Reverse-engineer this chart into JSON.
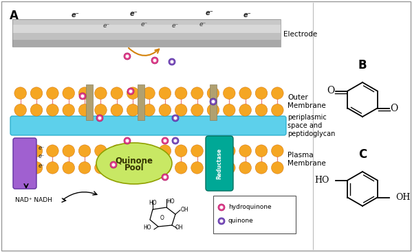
{
  "title_A": "A",
  "title_B": "B",
  "title_C": "C",
  "electrode_color": "#aaaaaa",
  "membrane_orange": "#f5a623",
  "membrane_pink": "#e87878",
  "periplasm_color": "#40c8e8",
  "quinone_pool_color": "#c8e864",
  "reductase_color": "#00a896",
  "protein_color": "#a060d0",
  "hydroquinone_color": "#e0408c",
  "quinone_color": "#8050b8",
  "arrow_color": "#d4820a",
  "pillar_color": "#aaa080",
  "label_outer": "Outer\nMembrane",
  "label_periplasm": "periplasmic\nspace and\npeptidoglycan",
  "label_plasma": "Plasma\nMembrane",
  "label_electrode": "Electrode",
  "label_quinone_pool": "Quinone\nPool",
  "label_reductase": "Reductase",
  "legend_hydroquinone": "hydroquinone",
  "legend_quinone": "quinone"
}
